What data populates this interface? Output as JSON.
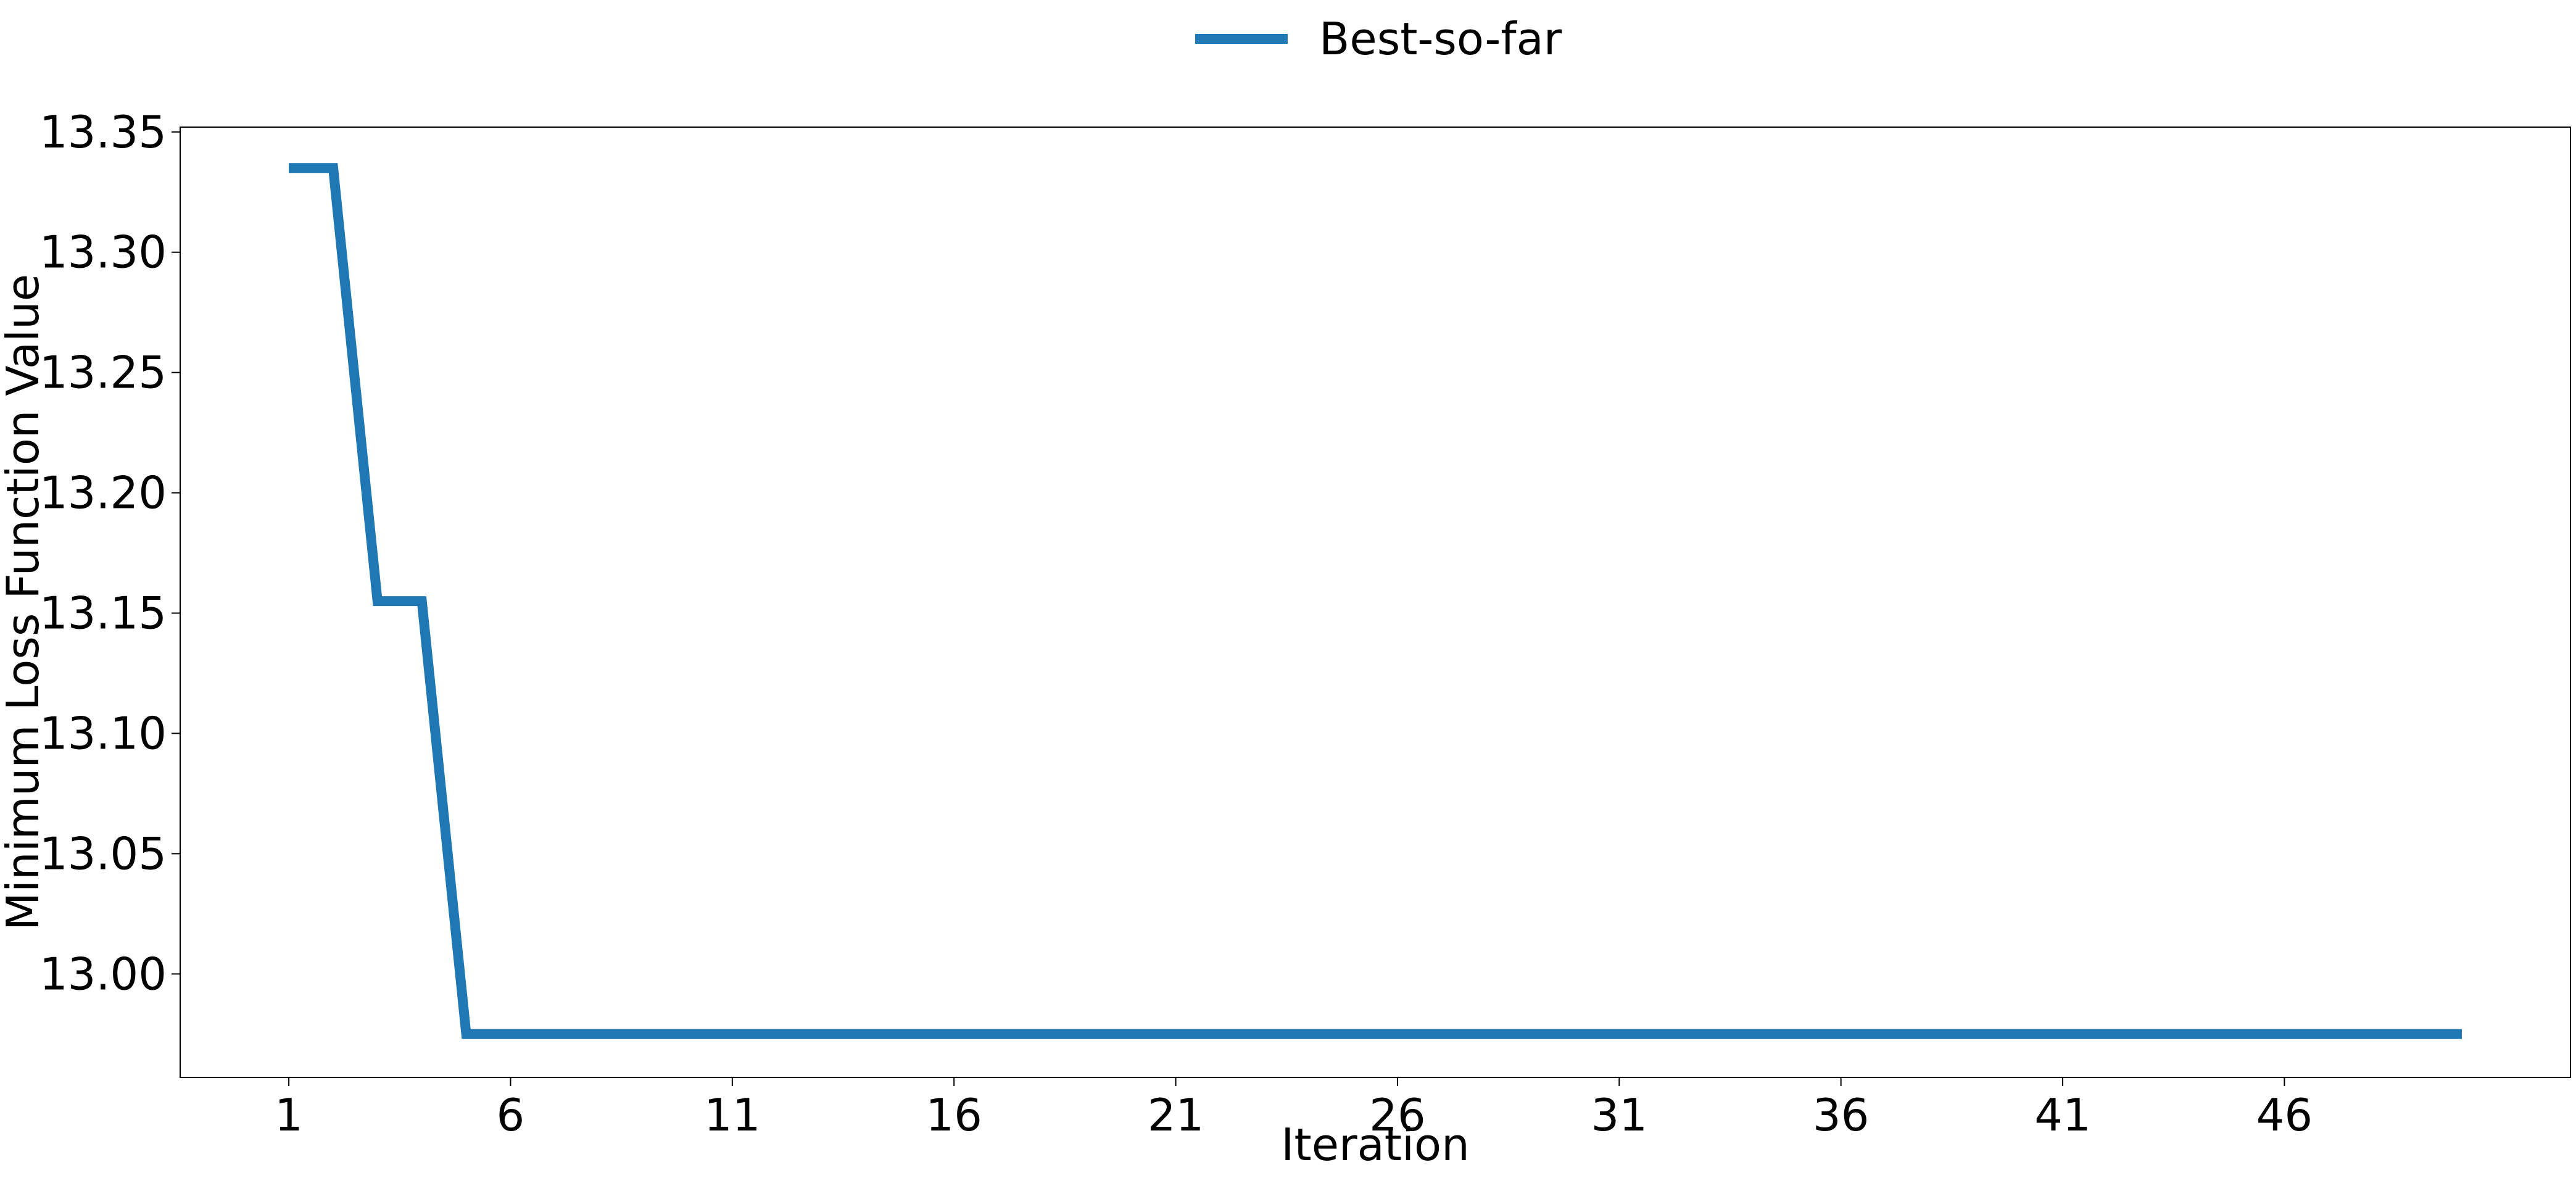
{
  "chart_data": {
    "type": "line",
    "title": "",
    "xlabel": "Iteration",
    "ylabel": "Minimum Loss Function Value",
    "xlim": [
      -1.45,
      52.45
    ],
    "ylim": [
      12.957,
      13.352
    ],
    "x_ticks": [
      1,
      6,
      11,
      16,
      21,
      26,
      31,
      36,
      41,
      46
    ],
    "x_tick_labels": [
      "1",
      "6",
      "11",
      "16",
      "21",
      "26",
      "31",
      "36",
      "41",
      "46"
    ],
    "y_ticks": [
      13.0,
      13.05,
      13.1,
      13.15,
      13.2,
      13.25,
      13.3,
      13.35
    ],
    "y_tick_labels": [
      "13.00",
      "13.05",
      "13.10",
      "13.15",
      "13.20",
      "13.25",
      "13.30",
      "13.35"
    ],
    "grid": false,
    "legend": {
      "position": "top-center",
      "entries": [
        {
          "label": "Best-so-far",
          "color": "#1f77b4"
        }
      ]
    },
    "series": [
      {
        "name": "Best-so-far",
        "color": "#1f77b4",
        "x": [
          1,
          2,
          3,
          4,
          5,
          6,
          7,
          8,
          9,
          10,
          11,
          12,
          13,
          14,
          15,
          16,
          17,
          18,
          19,
          20,
          21,
          22,
          23,
          24,
          25,
          26,
          27,
          28,
          29,
          30,
          31,
          32,
          33,
          34,
          35,
          36,
          37,
          38,
          39,
          40,
          41,
          42,
          43,
          44,
          45,
          46,
          47,
          48,
          49,
          50
        ],
        "y": [
          13.335,
          13.335,
          13.155,
          13.155,
          12.975,
          12.975,
          12.975,
          12.975,
          12.975,
          12.975,
          12.975,
          12.975,
          12.975,
          12.975,
          12.975,
          12.975,
          12.975,
          12.975,
          12.975,
          12.975,
          12.975,
          12.975,
          12.975,
          12.975,
          12.975,
          12.975,
          12.975,
          12.975,
          12.975,
          12.975,
          12.975,
          12.975,
          12.975,
          12.975,
          12.975,
          12.975,
          12.975,
          12.975,
          12.975,
          12.975,
          12.975,
          12.975,
          12.975,
          12.975,
          12.975,
          12.975,
          12.975,
          12.975,
          12.975,
          12.975
        ]
      }
    ]
  }
}
